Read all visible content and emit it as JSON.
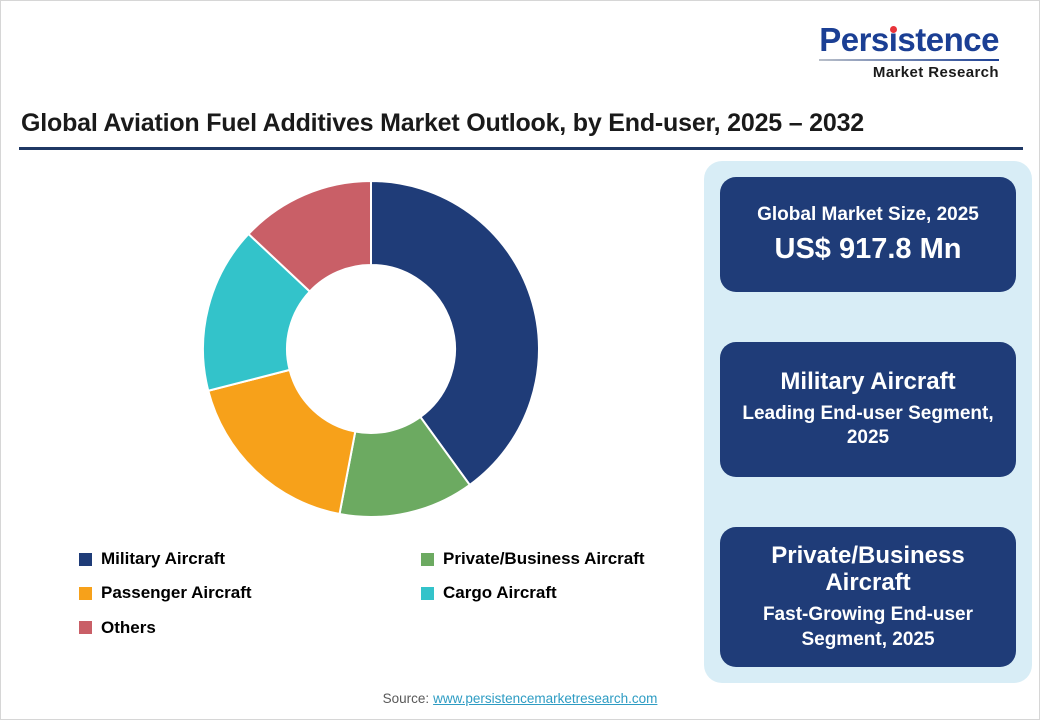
{
  "page": {
    "title": "Global Aviation Fuel Additives Market Outlook, by End-user, 2025 – 2032",
    "accent_color": "#1f3864",
    "source_prefix": "Source:",
    "source_link_text": "www.persistencemarketresearch.com",
    "link_color": "#2e9cc3"
  },
  "logo": {
    "title": "Persistence",
    "subtitle": "Market Research",
    "brand_color": "#1b3f94",
    "dot_color": "#e8333a"
  },
  "chart_data": {
    "type": "pie",
    "style": "donut",
    "title": "Global Aviation Fuel Additives Market Outlook, by End-user, 2025 – 2032",
    "inner_radius_ratio": 0.5,
    "start_angle_deg": 0,
    "direction": "clockwise",
    "legend_position": "bottom",
    "note": "no numeric data labels shown; values are % share visually estimated from arc angles",
    "segments": [
      {
        "label": "Military Aircraft",
        "value": 40,
        "color": "#1f3c78"
      },
      {
        "label": "Private/Business Aircraft",
        "value": 13,
        "color": "#6caa61"
      },
      {
        "label": "Passenger Aircraft",
        "value": 18,
        "color": "#f7a11a"
      },
      {
        "label": "Cargo Aircraft",
        "value": 16,
        "color": "#33c3ca"
      },
      {
        "label": "Others",
        "value": 13,
        "color": "#c95f67"
      }
    ]
  },
  "side_panel": {
    "background": "#d8edf6",
    "card_background": "#1f3c78",
    "cards": [
      {
        "line1": "Global Market Size, 2025",
        "line2": "US$ 917.8 Mn",
        "emphasis": "line2"
      },
      {
        "line1": "Military Aircraft",
        "line2": "Leading End-user Segment, 2025",
        "emphasis": "line1"
      },
      {
        "line1": "Private/Business Aircraft",
        "line2": "Fast-Growing End-user Segment, 2025",
        "emphasis": "line1"
      }
    ]
  }
}
